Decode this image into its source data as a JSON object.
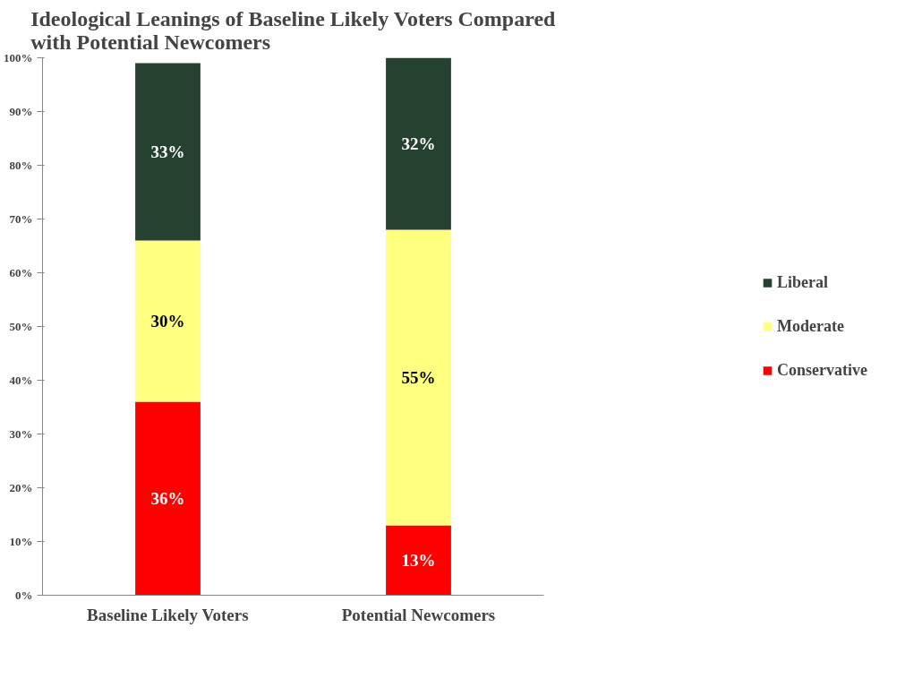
{
  "chart_data": {
    "type": "bar",
    "stacked": true,
    "title": "Ideological Leanings of Baseline Likely Voters Compared\nwith Potential Newcomers",
    "categories": [
      "Baseline Likely Voters",
      "Potential Newcomers"
    ],
    "series": [
      {
        "name": "Conservative",
        "color": "#ff0000",
        "values": [
          36,
          13
        ],
        "value_labels": [
          "36%",
          "13%"
        ]
      },
      {
        "name": "Moderate",
        "color": "#ffff80",
        "values": [
          30,
          55
        ],
        "value_labels": [
          "30%",
          "55%"
        ]
      },
      {
        "name": "Liberal",
        "color": "#254130",
        "values": [
          33,
          32
        ],
        "value_labels": [
          "33%",
          "32%"
        ]
      }
    ],
    "ylim": [
      0,
      100
    ],
    "yticks": [
      {
        "value": 0,
        "label": "0%"
      },
      {
        "value": 10,
        "label": "10%"
      },
      {
        "value": 20,
        "label": "20%"
      },
      {
        "value": 30,
        "label": "30%"
      },
      {
        "value": 40,
        "label": "40%"
      },
      {
        "value": 50,
        "label": "50%"
      },
      {
        "value": 60,
        "label": "60%"
      },
      {
        "value": 70,
        "label": "70%"
      },
      {
        "value": 80,
        "label": "80%"
      },
      {
        "value": 90,
        "label": "90%"
      },
      {
        "value": 100,
        "label": "100%"
      }
    ],
    "grid": false,
    "legend": "right"
  }
}
